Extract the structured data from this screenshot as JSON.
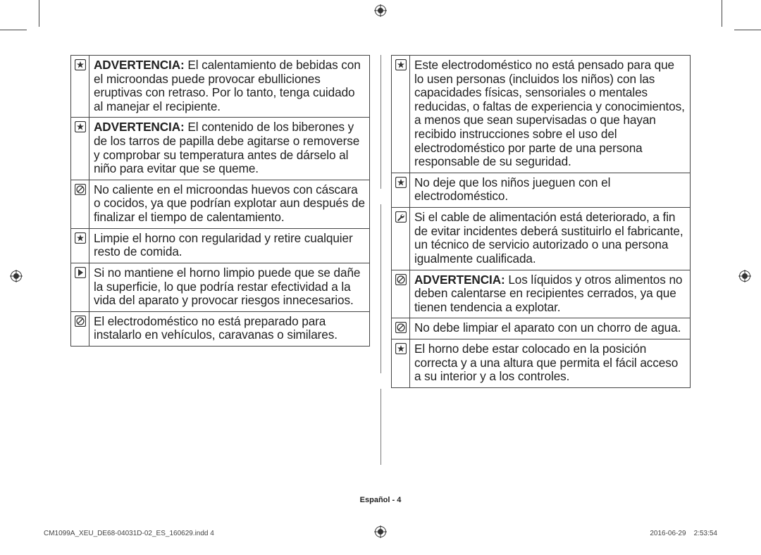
{
  "left": [
    {
      "icon": "star",
      "bold": "ADVERTENCIA:",
      "text": " El calentamiento de bebidas con el microondas puede provocar ebulliciones eruptivas con retraso. Por lo tanto, tenga cuidado al manejar el recipiente."
    },
    {
      "icon": "star",
      "bold": "ADVERTENCIA:",
      "text": " El contenido de los biberones y de los tarros de papilla debe agitarse o removerse y comprobar su temperatura antes de dárselo al niño para evitar que se queme."
    },
    {
      "icon": "no",
      "bold": "",
      "text": "No caliente en el microondas huevos con cáscara o cocidos, ya que podrían explotar aun después de finalizar el tiempo de calentamiento."
    },
    {
      "icon": "star",
      "bold": "",
      "text": "Limpie el horno con regularidad y retire cualquier resto de comida."
    },
    {
      "icon": "arrow",
      "bold": "",
      "text": "Si no mantiene el horno limpio puede que se dañe la superficie, lo que podría restar efectividad a la vida del aparato y provocar riesgos innecesarios."
    },
    {
      "icon": "no",
      "bold": "",
      "text": "El electrodoméstico no está preparado para instalarlo en vehículos, caravanas o similares."
    }
  ],
  "right": [
    {
      "icon": "star",
      "bold": "",
      "text": "Este electrodoméstico no está pensado para que lo usen personas (incluidos los niños) con las capacidades físicas, sensoriales o mentales reducidas, o faltas de experiencia y conocimientos, a menos que sean supervisadas o que hayan recibido instrucciones sobre el uso del electrodoméstico por parte de una persona responsable de su seguridad."
    },
    {
      "icon": "star",
      "bold": "",
      "text": "No deje que los niños jueguen con el electrodoméstico."
    },
    {
      "icon": "wrench",
      "bold": "",
      "text": "Si el cable de alimentación está deteriorado, a fin de evitar incidentes deberá sustituirlo el fabricante, un técnico de servicio autorizado o una persona igualmente cualificada."
    },
    {
      "icon": "no",
      "bold": "ADVERTENCIA:",
      "text": " Los líquidos y otros alimentos no deben calentarse en recipientes cerrados, ya que tienen tendencia a explotar."
    },
    {
      "icon": "no",
      "bold": "",
      "text": "No debe limpiar el aparato con un chorro de agua."
    },
    {
      "icon": "star",
      "bold": "",
      "text": "El horno debe estar colocado en la posición correcta y a una altura que permita el fácil acceso a su interior y a los controles."
    }
  ],
  "footer": {
    "lang": "Español - 4",
    "left": "CM1099A_XEU_DE68-04031D-02_ES_160629.indd   4",
    "right": "2016-06-29     2:53:54"
  }
}
